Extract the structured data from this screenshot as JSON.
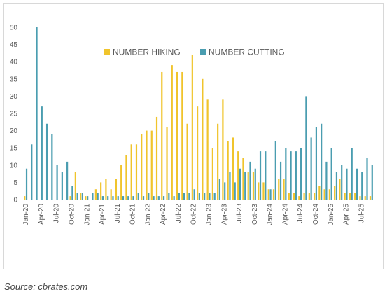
{
  "source_text": "Source: cbrates.com",
  "chart_data": {
    "type": "bar",
    "title": "",
    "xlabel": "",
    "ylabel": "",
    "ylim": [
      0,
      50
    ],
    "yticks": [
      0,
      5,
      10,
      15,
      20,
      25,
      30,
      35,
      40,
      45,
      50
    ],
    "grid": false,
    "legend_position": "top-center",
    "colors": {
      "hiking": "#f0c42c",
      "cutting": "#4a9db0",
      "axis": "#bfbfbf"
    },
    "categories": [
      "Jan-20",
      "Feb-20",
      "Mar-20",
      "Apr-20",
      "May-20",
      "Jun-20",
      "Jul-20",
      "Aug-20",
      "Sep-20",
      "Oct-20",
      "Nov-20",
      "Dec-20",
      "Jan-21",
      "Feb-21",
      "Mar-21",
      "Apr-21",
      "May-21",
      "Jun-21",
      "Jul-21",
      "Aug-21",
      "Sep-21",
      "Oct-21",
      "Nov-21",
      "Dec-21",
      "Jan-22",
      "Feb-22",
      "Mar-22",
      "Apr-22",
      "May-22",
      "Jun-22",
      "Jul-22",
      "Aug-22",
      "Sep-22",
      "Oct-22",
      "Nov-22",
      "Dec-22",
      "Jan-23",
      "Feb-23",
      "Mar-23",
      "Apr-23",
      "May-23",
      "Jun-23",
      "Jul-23",
      "Aug-23",
      "Sep-23",
      "Oct-23",
      "Nov-23",
      "Dec-23",
      "Jan-24",
      "Feb-24",
      "Mar-24",
      "Apr-24",
      "May-24",
      "Jun-24",
      "Jul-24",
      "Aug-24",
      "Sep-24",
      "Oct-24",
      "Nov-24",
      "Dec-24",
      "Jan-25",
      "Feb-25",
      "Mar-25",
      "Apr-25",
      "May-25",
      "Jun-25",
      "Jul-25",
      "Aug-25",
      "Sep-25"
    ],
    "x_tick_labels": [
      {
        "index": 0,
        "label": "Jan-20"
      },
      {
        "index": 3,
        "label": "Apr-20"
      },
      {
        "index": 6,
        "label": "Jul-20"
      },
      {
        "index": 9,
        "label": "Oct-20"
      },
      {
        "index": 12,
        "label": "Jan-21"
      },
      {
        "index": 15,
        "label": "Apr-21"
      },
      {
        "index": 18,
        "label": "Jul-21"
      },
      {
        "index": 21,
        "label": "Oct-21"
      },
      {
        "index": 24,
        "label": "Jan-22"
      },
      {
        "index": 27,
        "label": "Apr-22"
      },
      {
        "index": 30,
        "label": "Jul-22"
      },
      {
        "index": 33,
        "label": "Oct-22"
      },
      {
        "index": 36,
        "label": "Jan-23"
      },
      {
        "index": 39,
        "label": "Apr-23"
      },
      {
        "index": 42,
        "label": "Jul-23"
      },
      {
        "index": 45,
        "label": "Oct-23"
      },
      {
        "index": 48,
        "label": "Jan-24"
      },
      {
        "index": 51,
        "label": "Apr-24"
      },
      {
        "index": 54,
        "label": "Jul-24"
      },
      {
        "index": 57,
        "label": "Oct-24"
      },
      {
        "index": 60,
        "label": "Jan-25"
      },
      {
        "index": 63,
        "label": "Apr-25"
      },
      {
        "index": 66,
        "label": "Jul-25"
      }
    ],
    "series": [
      {
        "name": "NUMBER HIKING",
        "values": [
          1,
          0,
          0,
          0,
          0,
          0,
          0,
          0,
          0,
          1,
          8,
          2,
          1,
          0,
          3,
          5,
          6,
          3,
          6,
          10,
          13,
          16,
          16,
          19,
          20,
          20,
          24,
          37,
          21,
          39,
          37,
          37,
          22,
          42,
          27,
          35,
          29,
          15,
          22,
          29,
          17,
          18,
          14,
          12,
          8,
          8,
          5,
          5,
          3,
          3,
          6,
          6,
          2,
          2,
          1,
          2,
          2,
          2,
          4,
          3,
          3,
          4,
          6,
          2,
          2,
          2,
          1,
          1,
          1
        ]
      },
      {
        "name": "NUMBER CUTTING",
        "values": [
          9,
          16,
          50,
          27,
          22,
          19,
          10,
          8,
          11,
          4,
          2,
          2,
          1,
          2,
          2,
          1,
          1,
          1,
          1,
          1,
          1,
          1,
          2,
          1,
          2,
          1,
          1,
          1,
          2,
          1,
          2,
          2,
          2,
          3,
          2,
          2,
          2,
          2,
          6,
          5,
          8,
          5,
          9,
          8,
          11,
          9,
          14,
          14,
          3,
          17,
          11,
          15,
          14,
          14,
          15,
          30,
          18,
          21,
          22,
          11,
          15,
          8,
          10,
          9,
          15,
          9,
          8,
          12,
          10
        ]
      }
    ]
  }
}
